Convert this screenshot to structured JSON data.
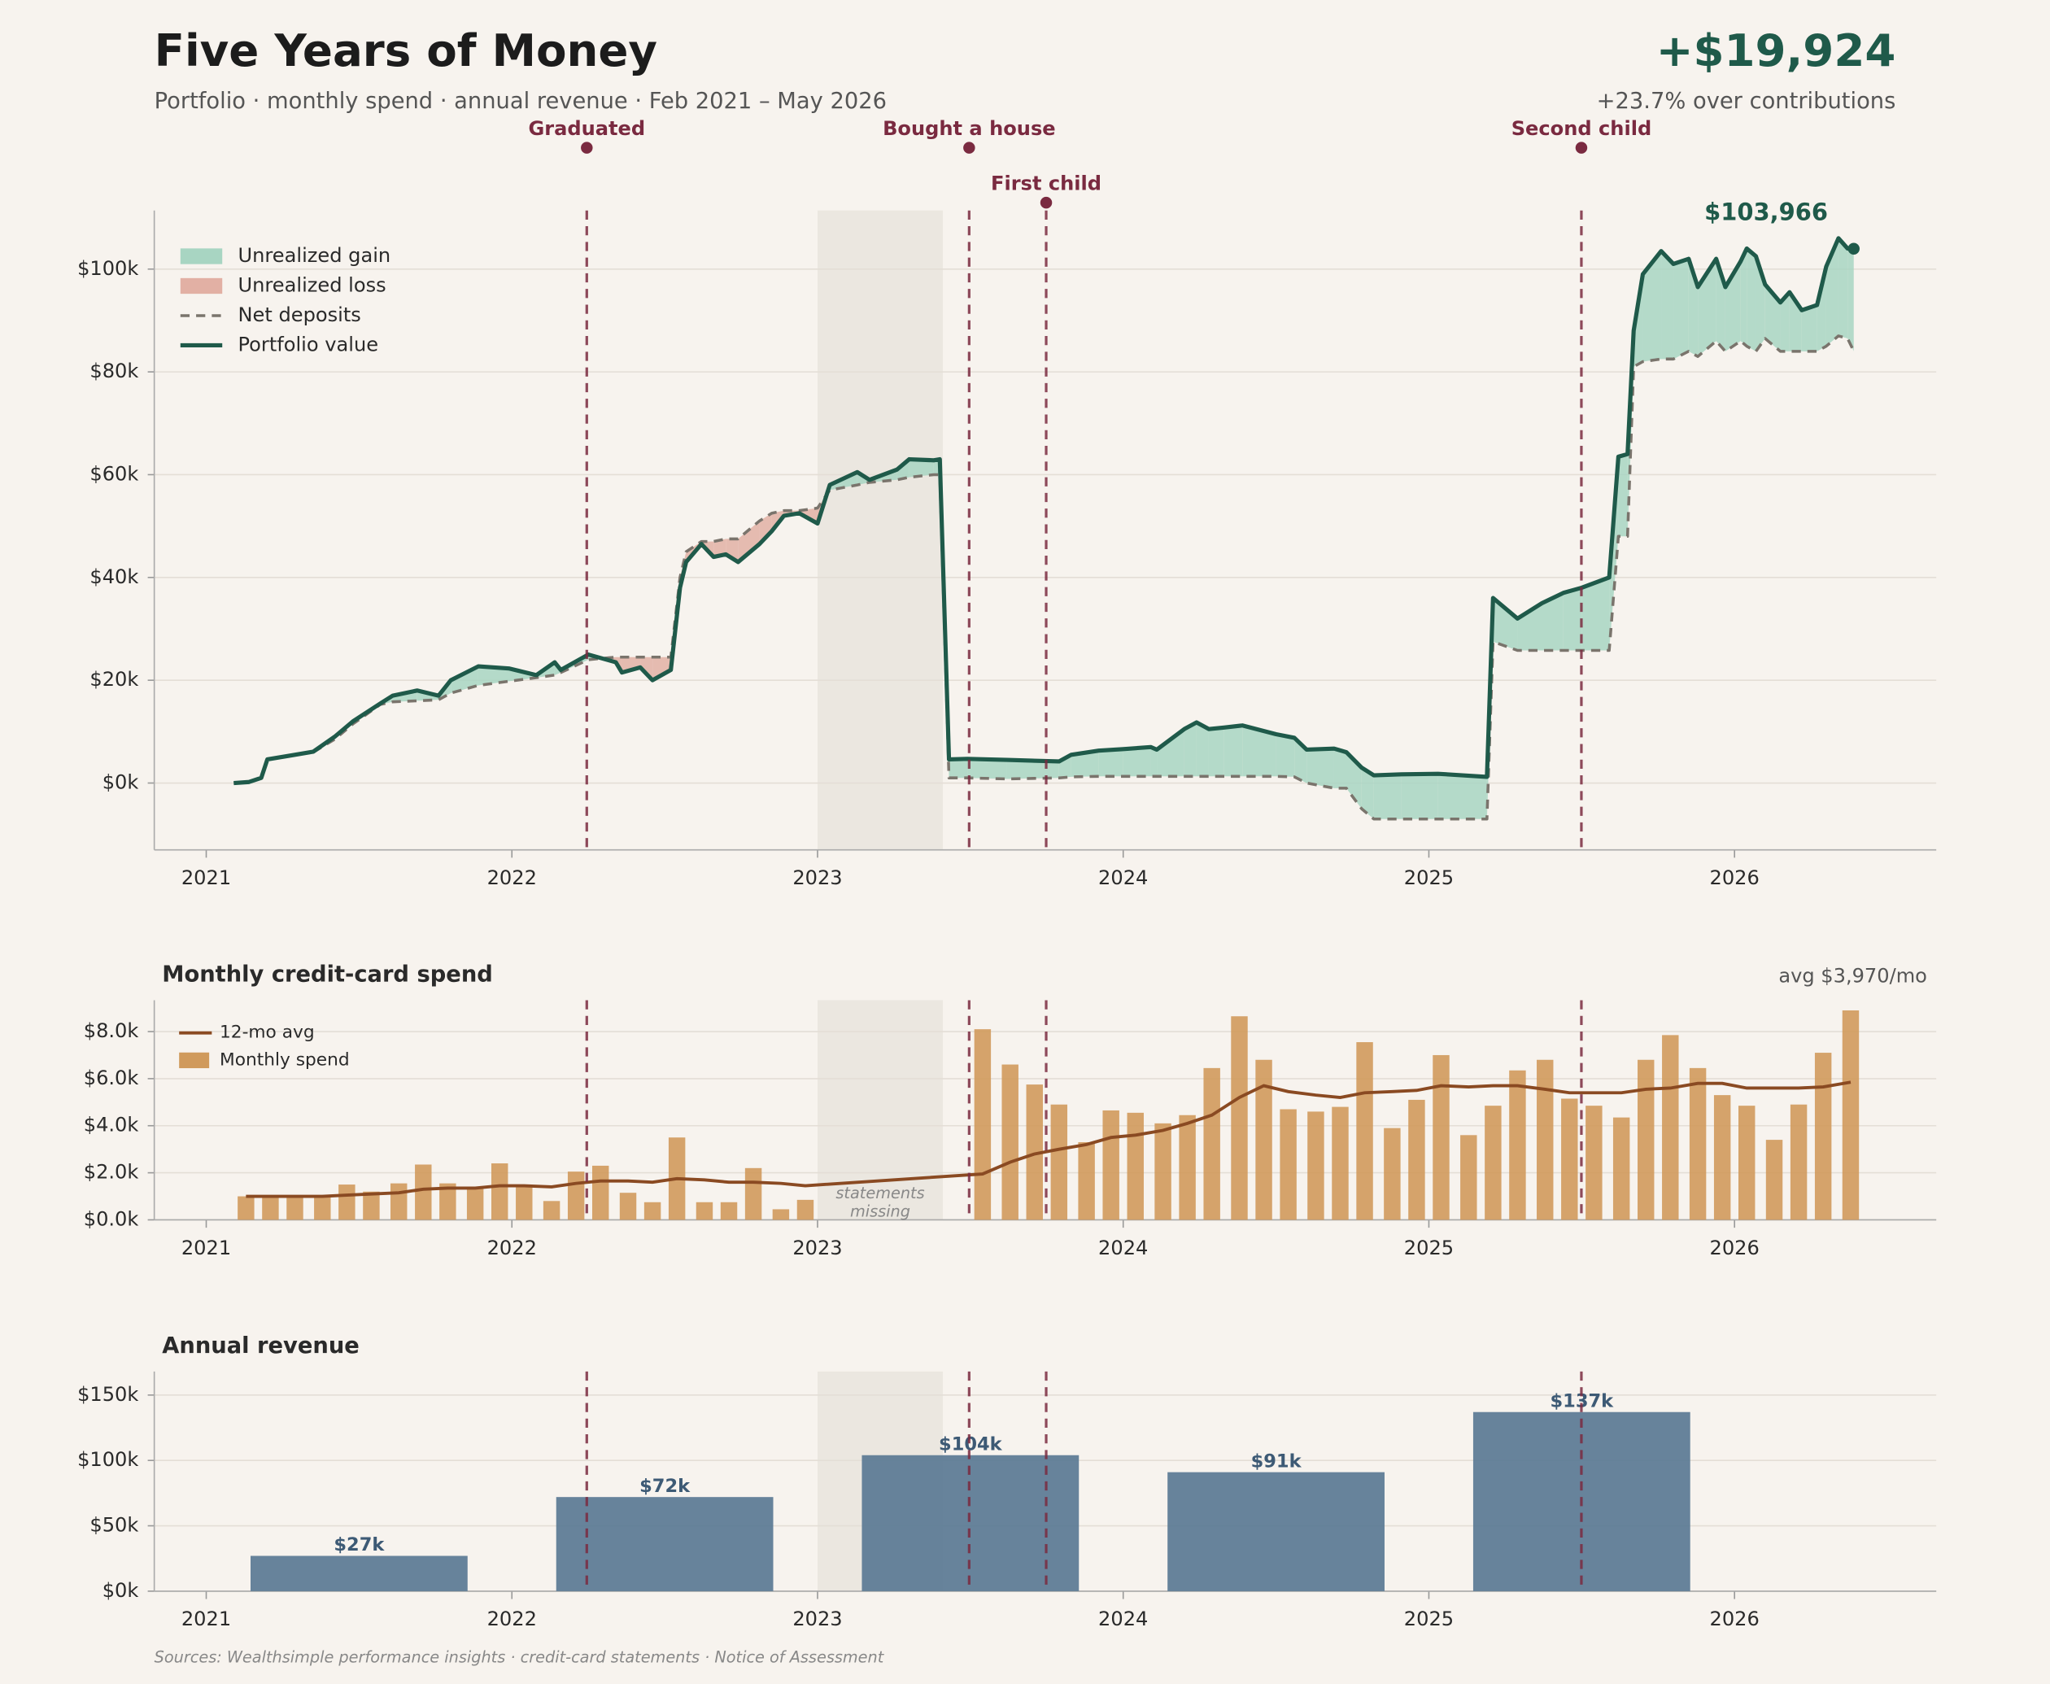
{
  "header": {
    "title": "Five Years of Money",
    "subtitle": "Portfolio · monthly spend · annual revenue  ·  Feb 2021 – May 2026",
    "headline": "+$19,924",
    "headline_note": "+23.7% over contributions"
  },
  "annotations": {
    "events": [
      {
        "label": "Graduated",
        "x": 2022.245
      },
      {
        "label": "Bought a house",
        "x": 2023.496
      },
      {
        "label": "First child",
        "x": 2023.748
      },
      {
        "label": "Second child",
        "x": 2025.499
      }
    ],
    "event_color": "#7a2a40",
    "missing_span": [
      2023.0,
      2023.41
    ],
    "missing_color": "#ebe7e0"
  },
  "chart_data": [
    {
      "type": "line",
      "x": [
        2021.09,
        2021.14,
        2021.18,
        2021.2,
        2021.27,
        2021.35,
        2021.42,
        2021.48,
        2021.57,
        2021.61,
        2021.69,
        2021.76,
        2021.8,
        2021.89,
        2021.99,
        2022.08,
        2022.14,
        2022.16,
        2022.25,
        2022.34,
        2022.36,
        2022.42,
        2022.46,
        2022.52,
        2022.55,
        2022.57,
        2022.62,
        2022.66,
        2022.7,
        2022.74,
        2022.81,
        2022.85,
        2022.89,
        2022.94,
        2023.0,
        2023.04,
        2023.13,
        2023.17,
        2023.26,
        2023.3,
        2023.38,
        2023.4,
        2023.43,
        2023.49,
        2023.62,
        2023.79,
        2023.83,
        2023.92,
        2024.0,
        2024.09,
        2024.11,
        2024.2,
        2024.24,
        2024.28,
        2024.33,
        2024.39,
        2024.5,
        2024.56,
        2024.6,
        2024.69,
        2024.73,
        2024.78,
        2024.82,
        2024.91,
        2025.03,
        2025.19,
        2025.21,
        2025.29,
        2025.37,
        2025.44,
        2025.5,
        2025.59,
        2025.62,
        2025.65,
        2025.67,
        2025.7,
        2025.76,
        2025.8,
        2025.85,
        2025.88,
        2025.94,
        2025.97,
        2026.02,
        2026.04,
        2026.07,
        2026.1,
        2026.15,
        2026.18,
        2026.22,
        2026.27,
        2026.3,
        2026.34,
        2026.37,
        2026.39
      ],
      "series": [
        {
          "name": "Net deposits",
          "color": "#7a746c",
          "dash": true,
          "values": [
            0,
            200,
            1000,
            4600,
            5300,
            6000,
            8500,
            11500,
            15300,
            15800,
            16000,
            16200,
            17500,
            19000,
            19800,
            20500,
            21000,
            21500,
            24000,
            24500,
            24500,
            24500,
            24500,
            24500,
            40000,
            45000,
            47000,
            47000,
            47500,
            47500,
            51000,
            52500,
            53000,
            53000,
            53500,
            57000,
            58000,
            58500,
            59000,
            59500,
            60000,
            60000,
            1000,
            1000,
            800,
            1000,
            1200,
            1300,
            1300,
            1300,
            1300,
            1300,
            1300,
            1300,
            1300,
            1300,
            1300,
            1200,
            0,
            -1000,
            -1000,
            -5000,
            -7000,
            -7000,
            -7000,
            -7000,
            27500,
            25800,
            25800,
            25800,
            25800,
            25800,
            48000,
            48000,
            81000,
            82000,
            82500,
            82500,
            84000,
            83000,
            86000,
            84000,
            86000,
            85000,
            84000,
            86500,
            84000,
            84000,
            84000,
            84000,
            85000,
            87000,
            86500,
            84042
          ]
        },
        {
          "name": "Portfolio value",
          "color": "#1f5a4a",
          "dash": false,
          "values": [
            0,
            200,
            1000,
            4600,
            5300,
            6100,
            9000,
            12000,
            15500,
            17000,
            18000,
            17000,
            20000,
            22700,
            22300,
            21000,
            23500,
            22000,
            25000,
            23500,
            21500,
            22500,
            20000,
            22000,
            38000,
            43000,
            46500,
            44000,
            44500,
            43000,
            46500,
            49000,
            52000,
            52500,
            50500,
            58000,
            60500,
            59000,
            61000,
            63000,
            62800,
            63000,
            4600,
            4700,
            4500,
            4200,
            5500,
            6300,
            6600,
            7000,
            6500,
            10500,
            11800,
            10500,
            10800,
            11200,
            9500,
            8800,
            6500,
            6700,
            6000,
            3000,
            1500,
            1700,
            1800,
            1200,
            36000,
            32000,
            35000,
            37000,
            38000,
            40000,
            63500,
            64000,
            88000,
            99000,
            103500,
            101000,
            102000,
            96500,
            102000,
            96500,
            101500,
            104000,
            102500,
            97000,
            93500,
            95500,
            92000,
            93000,
            100500,
            106000,
            104000,
            103966
          ]
        }
      ],
      "fills": [
        {
          "name": "Unrealized gain",
          "color": "#a8d5c2"
        },
        {
          "name": "Unrealized loss",
          "color": "#e2b0a4"
        }
      ],
      "end_label": "$103,966",
      "xlim": [
        2020.83,
        2026.66
      ],
      "xticks": [
        2021,
        2022,
        2023,
        2024,
        2025,
        2026
      ],
      "ylim": [
        -13000,
        111400
      ],
      "yticks": [
        {
          "value": 0,
          "label": "$0k"
        },
        {
          "value": 20000,
          "label": "$20k"
        },
        {
          "value": 40000,
          "label": "$40k"
        },
        {
          "value": 60000,
          "label": "$60k"
        },
        {
          "value": 80000,
          "label": "$80k"
        },
        {
          "value": 100000,
          "label": "$100k"
        }
      ],
      "grid": true
    },
    {
      "type": "bar",
      "title": "Monthly credit-card spend",
      "avg_label": "avg $3,970/mo",
      "missing_note": [
        "statements",
        "missing"
      ],
      "x": [
        2021.13,
        2021.21,
        2021.29,
        2021.38,
        2021.46,
        2021.54,
        2021.63,
        2021.71,
        2021.79,
        2021.88,
        2021.96,
        2022.04,
        2022.13,
        2022.21,
        2022.29,
        2022.38,
        2022.46,
        2022.54,
        2022.63,
        2022.71,
        2022.79,
        2022.88,
        2022.96,
        2023.54,
        2023.63,
        2023.71,
        2023.79,
        2023.88,
        2023.96,
        2024.04,
        2024.13,
        2024.21,
        2024.29,
        2024.38,
        2024.46,
        2024.54,
        2024.63,
        2024.71,
        2024.79,
        2024.88,
        2024.96,
        2025.04,
        2025.13,
        2025.21,
        2025.29,
        2025.38,
        2025.46,
        2025.54,
        2025.63,
        2025.71,
        2025.79,
        2025.88,
        2025.96,
        2026.04,
        2026.13,
        2026.21,
        2026.29,
        2026.38
      ],
      "series": [
        {
          "name": "12-mo avg",
          "type": "line",
          "color": "#8a4a22",
          "values": [
            1000,
            1000,
            1000,
            1000,
            1050,
            1100,
            1150,
            1300,
            1350,
            1350,
            1450,
            1450,
            1400,
            1550,
            1650,
            1650,
            1600,
            1750,
            1700,
            1600,
            1600,
            1550,
            1450,
            1950,
            2450,
            2800,
            3000,
            3200,
            3500,
            3600,
            3800,
            4100,
            4450,
            5200,
            5700,
            5450,
            5300,
            5200,
            5400,
            5450,
            5500,
            5700,
            5650,
            5700,
            5700,
            5550,
            5400,
            5400,
            5400,
            5550,
            5600,
            5800,
            5800,
            5600,
            5600,
            5600,
            5650,
            5850
          ]
        },
        {
          "name": "Monthly spend",
          "type": "bar",
          "color": "#d09a5c",
          "values": [
            1000,
            950,
            950,
            950,
            1500,
            1200,
            1550,
            2350,
            1550,
            1350,
            2400,
            1400,
            800,
            2050,
            2300,
            1150,
            750,
            3500,
            750,
            750,
            2200,
            450,
            850,
            8100,
            6600,
            5750,
            4900,
            3300,
            4650,
            4550,
            4100,
            4450,
            6450,
            8650,
            6800,
            4700,
            4600,
            4800,
            7550,
            3900,
            5100,
            7000,
            3600,
            4850,
            6350,
            6800,
            5150,
            4850,
            4350,
            6800,
            7850,
            6450,
            5300,
            4850,
            3400,
            4900,
            7100,
            8900
          ]
        }
      ],
      "xlim": [
        2020.83,
        2026.66
      ],
      "xticks": [
        2021,
        2022,
        2023,
        2024,
        2025,
        2026
      ],
      "ylim": [
        0,
        9333
      ],
      "yticks": [
        {
          "value": 0,
          "label": "$0.0k"
        },
        {
          "value": 2000,
          "label": "$2.0k"
        },
        {
          "value": 4000,
          "label": "$4.0k"
        },
        {
          "value": 6000,
          "label": "$6.0k"
        },
        {
          "value": 8000,
          "label": "$8.0k"
        }
      ],
      "grid": true
    },
    {
      "type": "bar",
      "title": "Annual revenue",
      "x": [
        2021.5,
        2022.5,
        2023.5,
        2024.5,
        2025.5
      ],
      "values": [
        27000,
        72000,
        104000,
        91000,
        137000
      ],
      "value_labels": [
        "$27k",
        "$72k",
        "$104k",
        "$91k",
        "$137k"
      ],
      "color": "#5a7a94",
      "label_color": "#3d5a75",
      "xlim": [
        2020.83,
        2026.66
      ],
      "xticks": [
        2021,
        2022,
        2023,
        2024,
        2025,
        2026
      ],
      "ylim": [
        0,
        168000
      ],
      "yticks": [
        {
          "value": 0,
          "label": "$0k"
        },
        {
          "value": 50000,
          "label": "$50k"
        },
        {
          "value": 100000,
          "label": "$100k"
        },
        {
          "value": 150000,
          "label": "$150k"
        }
      ],
      "grid": true
    }
  ],
  "footer": {
    "sources": "Sources: Wealthsimple performance insights · credit-card statements · Notice of Assessment"
  }
}
